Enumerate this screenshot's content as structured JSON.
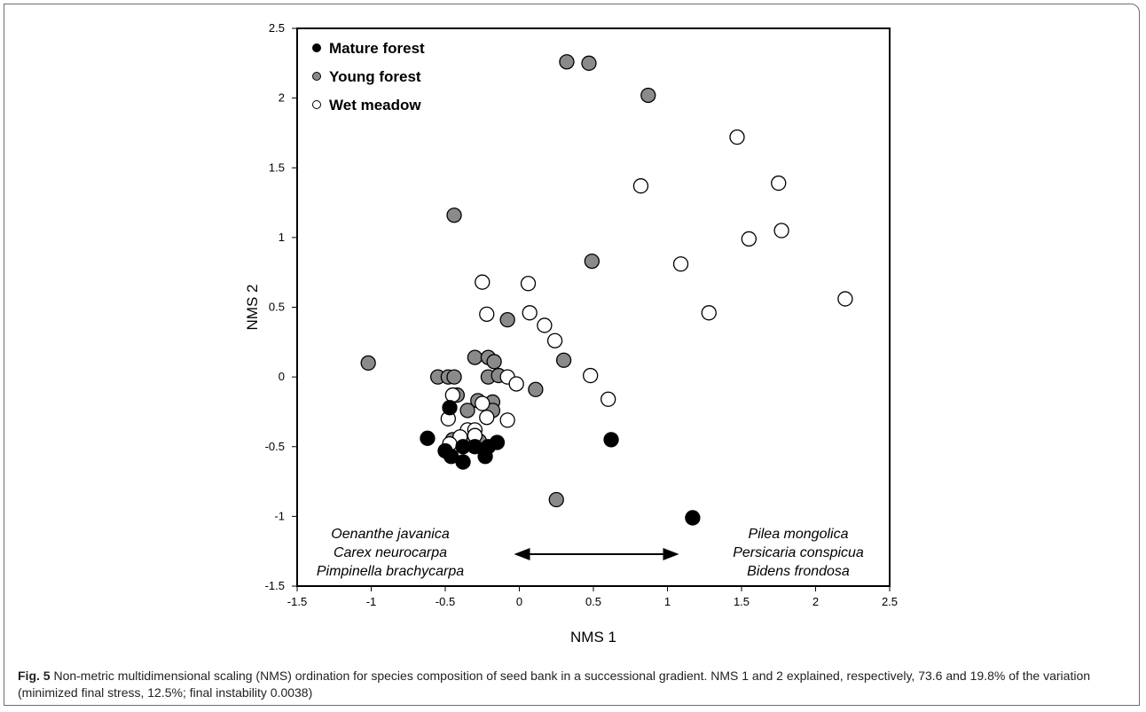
{
  "chart_data": {
    "type": "scatter",
    "xlabel": "NMS 1",
    "ylabel": "NMS 2",
    "xlim": [
      -1.5,
      2.5
    ],
    "ylim": [
      -1.5,
      2.5
    ],
    "xticks": [
      -1.5,
      -1,
      -0.5,
      0,
      0.5,
      1,
      1.5,
      2,
      2.5
    ],
    "yticks": [
      -1.5,
      -1,
      -0.5,
      0,
      0.5,
      1,
      1.5,
      2,
      2.5
    ],
    "xtick_labels": [
      "-1.5",
      "-1",
      "-0.5",
      "0",
      "0.5",
      "1",
      "1.5",
      "2",
      "2.5"
    ],
    "ytick_labels": [
      "-1.5",
      "-1",
      "-0.5",
      "0",
      "0.5",
      "1",
      "1.5",
      "2",
      "2.5"
    ],
    "grid": false,
    "legend_position": "top-left",
    "series": [
      {
        "name": "Young forest",
        "color": "#8a8a8a",
        "points": [
          [
            0.32,
            2.26
          ],
          [
            0.47,
            2.25
          ],
          [
            0.87,
            2.02
          ],
          [
            -0.44,
            1.16
          ],
          [
            0.49,
            0.83
          ],
          [
            -0.08,
            0.41
          ],
          [
            -1.02,
            0.1
          ],
          [
            -0.3,
            0.14
          ],
          [
            -0.21,
            0.14
          ],
          [
            -0.17,
            0.11
          ],
          [
            0.3,
            0.12
          ],
          [
            -0.55,
            0.0
          ],
          [
            -0.48,
            0.0
          ],
          [
            -0.44,
            0.0
          ],
          [
            -0.21,
            0.0
          ],
          [
            -0.14,
            0.01
          ],
          [
            0.11,
            -0.09
          ],
          [
            -0.42,
            -0.13
          ],
          [
            -0.28,
            -0.17
          ],
          [
            -0.18,
            -0.18
          ],
          [
            -0.35,
            -0.24
          ],
          [
            -0.18,
            -0.24
          ],
          [
            -0.45,
            -0.45
          ],
          [
            -0.38,
            -0.45
          ],
          [
            -0.27,
            -0.46
          ],
          [
            0.25,
            -0.88
          ]
        ]
      },
      {
        "name": "Wet meadow",
        "color": "#ffffff",
        "points": [
          [
            1.47,
            1.72
          ],
          [
            0.82,
            1.37
          ],
          [
            1.75,
            1.39
          ],
          [
            1.77,
            1.05
          ],
          [
            1.55,
            0.99
          ],
          [
            1.09,
            0.81
          ],
          [
            2.2,
            0.56
          ],
          [
            1.28,
            0.46
          ],
          [
            -0.25,
            0.68
          ],
          [
            0.06,
            0.67
          ],
          [
            -0.22,
            0.45
          ],
          [
            0.07,
            0.46
          ],
          [
            0.17,
            0.37
          ],
          [
            0.24,
            0.26
          ],
          [
            -0.08,
            0.0
          ],
          [
            -0.02,
            -0.05
          ],
          [
            0.48,
            0.01
          ],
          [
            0.6,
            -0.16
          ],
          [
            -0.45,
            -0.13
          ],
          [
            -0.25,
            -0.19
          ],
          [
            -0.22,
            -0.29
          ],
          [
            -0.08,
            -0.31
          ],
          [
            -0.48,
            -0.3
          ],
          [
            -0.35,
            -0.38
          ],
          [
            -0.3,
            -0.38
          ],
          [
            -0.3,
            -0.42
          ],
          [
            -0.4,
            -0.43
          ],
          [
            -0.47,
            -0.48
          ]
        ]
      },
      {
        "name": "Mature forest",
        "color": "#000000",
        "points": [
          [
            -0.47,
            -0.22
          ],
          [
            -0.62,
            -0.44
          ],
          [
            -0.5,
            -0.53
          ],
          [
            -0.46,
            -0.57
          ],
          [
            -0.38,
            -0.61
          ],
          [
            -0.38,
            -0.5
          ],
          [
            -0.3,
            -0.5
          ],
          [
            -0.23,
            -0.57
          ],
          [
            -0.21,
            -0.5
          ],
          [
            -0.15,
            -0.47
          ],
          [
            0.62,
            -0.45
          ],
          [
            1.17,
            -1.01
          ]
        ]
      }
    ],
    "legend": [
      {
        "label": "Mature forest",
        "color": "#000000"
      },
      {
        "label": "Young forest",
        "color": "#8a8a8a"
      },
      {
        "label": "Wet meadow",
        "color": "#ffffff"
      }
    ],
    "annotations": {
      "left_species": [
        "Oenanthe javanica",
        "Carex neurocarpa",
        "Pimpinella brachycarpa"
      ],
      "right_species": [
        "Pilea mongolica",
        "Persicaria conspicua",
        "Bidens frondosa"
      ],
      "arrow": {
        "direction": "double-headed",
        "from_x": 0.0,
        "to_x": 1.0
      }
    }
  },
  "caption": {
    "label": "Fig. 5",
    "text": " Non-metric multidimensional scaling (NMS) ordination for species composition of seed bank in a successional gradient. NMS 1 and 2 explained, respectively, 73.6 and 19.8% of the variation (minimized final stress, 12.5%; final instability 0.0038)"
  }
}
